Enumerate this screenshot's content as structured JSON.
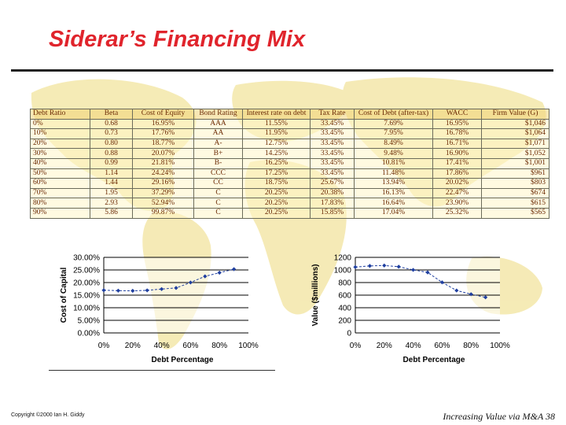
{
  "slide": {
    "title": "Siderar’s Financing Mix",
    "footer_left": "Copyright ©2000 Ian H. Giddy",
    "footer_right": "Increasing Value via M&A  38"
  },
  "table": {
    "headers": [
      "Debt Ratio",
      "Beta",
      "Cost of Equity",
      "Bond Rating",
      "Interest rate on debt",
      "Tax Rate",
      "Cost of Debt (after-tax)",
      "WACC",
      "Firm Value (G)"
    ],
    "rows": [
      [
        "0%",
        "0.68",
        "16.95%",
        "AAA",
        "11.55%",
        "33.45%",
        "7.69%",
        "16.95%",
        "$1,046"
      ],
      [
        "10%",
        "0.73",
        "17.76%",
        "AA",
        "11.95%",
        "33.45%",
        "7.95%",
        "16.78%",
        "$1,064"
      ],
      [
        "20%",
        "0.80",
        "18.77%",
        "A-",
        "12.75%",
        "33.45%",
        "8.49%",
        "16.71%",
        "$1,071"
      ],
      [
        "30%",
        "0.88",
        "20.07%",
        "B+",
        "14.25%",
        "33.45%",
        "9.48%",
        "16.90%",
        "$1,052"
      ],
      [
        "40%",
        "0.99",
        "21.81%",
        "B-",
        "16.25%",
        "33.45%",
        "10.81%",
        "17.41%",
        "$1,001"
      ],
      [
        "50%",
        "1.14",
        "24.24%",
        "CCC",
        "17.25%",
        "33.45%",
        "11.48%",
        "17.86%",
        "$961"
      ],
      [
        "60%",
        "1.44",
        "29.16%",
        "CC",
        "18.75%",
        "25.67%",
        "13.94%",
        "20.02%",
        "$803"
      ],
      [
        "70%",
        "1.95",
        "37.29%",
        "C",
        "20.25%",
        "20.38%",
        "16.13%",
        "22.47%",
        "$674"
      ],
      [
        "80%",
        "2.93",
        "52.94%",
        "C",
        "20.25%",
        "17.83%",
        "16.64%",
        "23.90%",
        "$615"
      ],
      [
        "90%",
        "5.86",
        "99.87%",
        "C",
        "20.25%",
        "15.85%",
        "17.04%",
        "25.32%",
        "$565"
      ]
    ]
  },
  "chart_data": [
    {
      "type": "line",
      "xlabel": "Debt Percentage",
      "ylabel": "Cost of Capital",
      "x": [
        0,
        0.1,
        0.2,
        0.3,
        0.4,
        0.5,
        0.6,
        0.7,
        0.8,
        0.9
      ],
      "series": [
        {
          "values": [
            0.1695,
            0.1678,
            0.1671,
            0.169,
            0.1741,
            0.1786,
            0.2002,
            0.2247,
            0.239,
            0.2532
          ]
        }
      ],
      "xlim": [
        0,
        1
      ],
      "ylim": [
        0,
        0.3
      ],
      "xticks": [
        "0%",
        "20%",
        "40%",
        "60%",
        "80%",
        "100%"
      ],
      "yticks": [
        "0.00%",
        "5.00%",
        "10.00%",
        "15.00%",
        "20.00%",
        "25.00%",
        "30.00%"
      ],
      "grid": "horizontal",
      "color": "#1f3fa0"
    },
    {
      "type": "line",
      "xlabel": "Debt Percentage",
      "ylabel": "Value ($millions)",
      "x": [
        0,
        0.1,
        0.2,
        0.3,
        0.4,
        0.5,
        0.6,
        0.7,
        0.8,
        0.9
      ],
      "series": [
        {
          "values": [
            1046,
            1064,
            1071,
            1052,
            1001,
            961,
            803,
            674,
            615,
            565
          ]
        }
      ],
      "xlim": [
        0,
        1
      ],
      "ylim": [
        0,
        1200
      ],
      "xticks": [
        "0%",
        "20%",
        "40%",
        "60%",
        "80%",
        "100%"
      ],
      "yticks": [
        "0",
        "200",
        "400",
        "600",
        "800",
        "1000",
        "1200"
      ],
      "grid": "horizontal",
      "color": "#1f3fa0"
    }
  ]
}
